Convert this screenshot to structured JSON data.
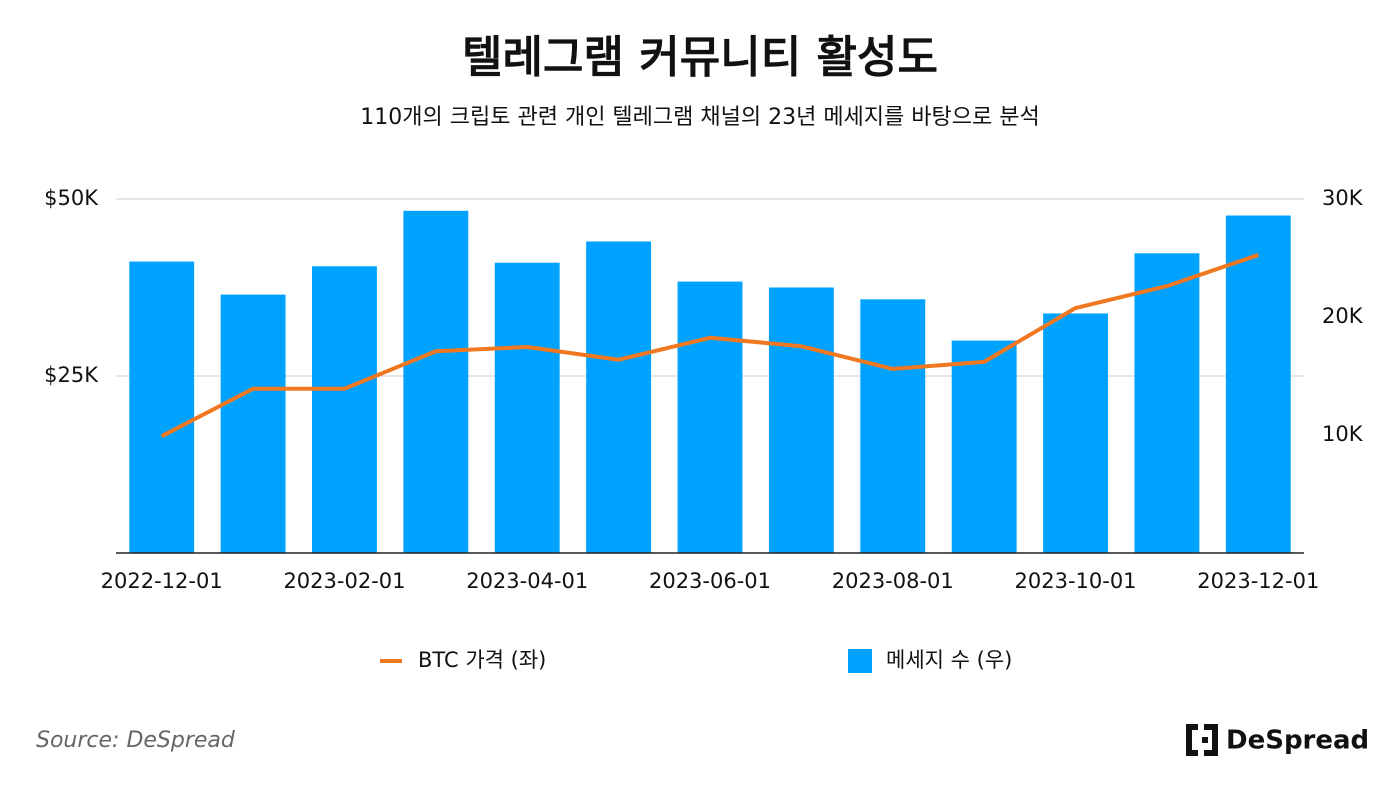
{
  "chart_data": {
    "type": "bar-line",
    "title": "텔레그램 커뮤니티 활성도",
    "subtitle": "110개의 크립토 관련 개인 텔레그램 채널의 23년 메세지를 바탕으로 분석",
    "categories": [
      "2022-12-01",
      null,
      "2023-02-01",
      null,
      "2023-04-01",
      null,
      "2023-06-01",
      null,
      "2023-08-01",
      null,
      "2023-10-01",
      null,
      "2023-12-01"
    ],
    "series": [
      {
        "name": "BTC 가격 (좌)",
        "type": "line",
        "color": "#f07820",
        "axis": "y",
        "values": [
          16500,
          23200,
          23200,
          28500,
          29100,
          27300,
          30400,
          29200,
          26000,
          27000,
          34600,
          37700,
          42100
        ]
      },
      {
        "name": "메세지 수 (우)",
        "type": "bar",
        "color": "#00a2ff",
        "axis": "y2",
        "values": [
          24700,
          21900,
          24300,
          29000,
          24600,
          26400,
          23000,
          22500,
          21500,
          18000,
          20300,
          25400,
          28600
        ]
      }
    ],
    "ylim": [
      0,
      50000
    ],
    "yticks": [
      {
        "value": 25000,
        "label": "$25K"
      },
      {
        "value": 50000,
        "label": "$50K"
      }
    ],
    "y2lim": [
      0,
      30000
    ],
    "y2ticks": [
      {
        "value": 10000,
        "label": "10K"
      },
      {
        "value": 20000,
        "label": "20K"
      },
      {
        "value": 30000,
        "label": "30K"
      }
    ],
    "grid": true,
    "source": "Source: DeSpread",
    "brand": "DeSpread"
  }
}
